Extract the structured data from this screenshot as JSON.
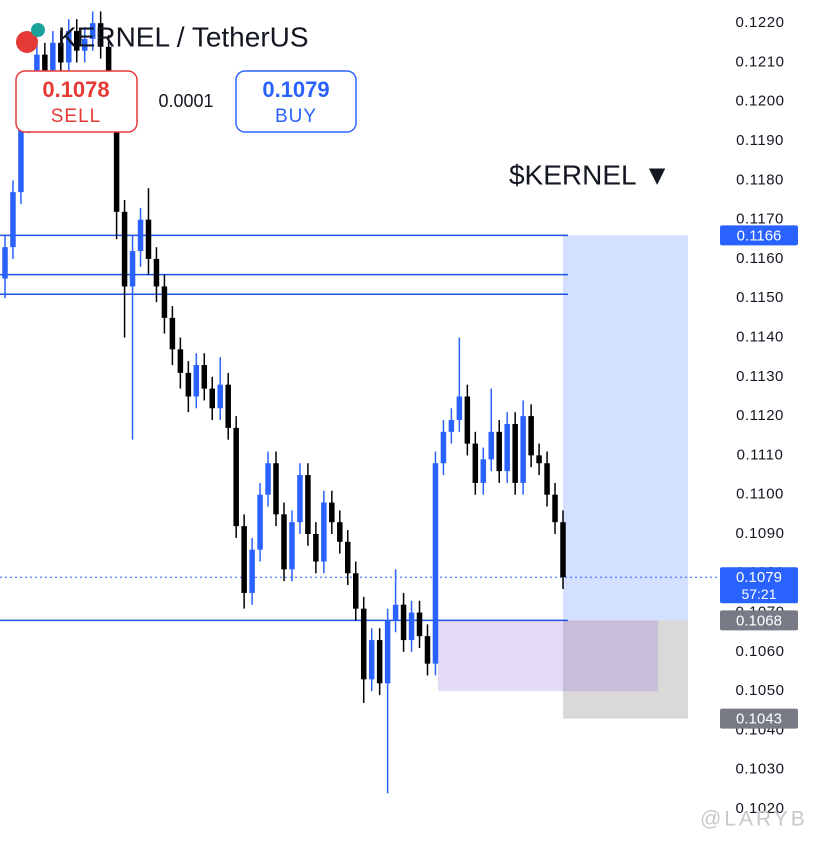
{
  "chart_data": {
    "type": "candlestick",
    "title": "KERNEL / TetherUS",
    "sell_price": 0.1078,
    "sell_label": "SELL",
    "spread": 0.0001,
    "buy_price": 0.1079,
    "buy_label": "BUY",
    "annotation": "$KERNEL ▼",
    "watermark": "@LARYB",
    "ylim": [
      0.10111,
      0.12259
    ],
    "yticks": [
      {
        "value": 0.102,
        "label": "0.1020"
      },
      {
        "value": 0.103,
        "label": "0.1030"
      },
      {
        "value": 0.104,
        "label": "0.1040"
      },
      {
        "value": 0.105,
        "label": "0.1050"
      },
      {
        "value": 0.106,
        "label": "0.1060"
      },
      {
        "value": 0.107,
        "label": "0.1070"
      },
      {
        "value": 0.108,
        "label": "0.1080"
      },
      {
        "value": 0.109,
        "label": "0.1090"
      },
      {
        "value": 0.11,
        "label": "0.1100"
      },
      {
        "value": 0.111,
        "label": "0.1110"
      },
      {
        "value": 0.112,
        "label": "0.1120"
      },
      {
        "value": 0.113,
        "label": "0.1130"
      },
      {
        "value": 0.114,
        "label": "0.1140"
      },
      {
        "value": 0.115,
        "label": "0.1150"
      },
      {
        "value": 0.116,
        "label": "0.1160"
      },
      {
        "value": 0.117,
        "label": "0.1170"
      },
      {
        "value": 0.118,
        "label": "0.1180"
      },
      {
        "value": 0.119,
        "label": "0.1190"
      },
      {
        "value": 0.12,
        "label": "0.1200"
      },
      {
        "value": 0.121,
        "label": "0.1210"
      },
      {
        "value": 0.122,
        "label": "0.1220"
      }
    ],
    "up_color": "#2962ff",
    "down_color": "#000000",
    "open": [
      0.1155,
      0.1163,
      0.1177,
      0.1195,
      0.1205,
      0.1212,
      0.1208,
      0.1215,
      0.121,
      0.1218,
      0.1213,
      0.1216,
      0.122,
      0.1214,
      0.1198,
      0.1172,
      0.1153,
      0.1162,
      0.117,
      0.116,
      0.1153,
      0.1145,
      0.1137,
      0.1131,
      0.1125,
      0.1133,
      0.1127,
      0.1122,
      0.1128,
      0.1117,
      0.1092,
      0.1075,
      0.1086,
      0.11,
      0.1108,
      0.1095,
      0.1081,
      0.1093,
      0.1105,
      0.109,
      0.1083,
      0.1098,
      0.1093,
      0.1088,
      0.108,
      0.1071,
      0.1053,
      0.1063,
      0.1052,
      0.1068,
      0.1072,
      0.1063,
      0.107,
      0.1064,
      0.1057,
      0.1108,
      0.1116,
      0.1119,
      0.1125,
      0.1113,
      0.1103,
      0.1109,
      0.1116,
      0.1106,
      0.1118,
      0.1103,
      0.112,
      0.111,
      0.1108,
      0.11,
      0.1093
    ],
    "high": [
      0.1166,
      0.118,
      0.1198,
      0.1208,
      0.1215,
      0.1215,
      0.1218,
      0.1218,
      0.1221,
      0.1221,
      0.1219,
      0.1223,
      0.1223,
      0.1217,
      0.12,
      0.1175,
      0.1166,
      0.1173,
      0.1178,
      0.1163,
      0.1156,
      0.1148,
      0.114,
      0.1134,
      0.1136,
      0.1136,
      0.113,
      0.1135,
      0.1131,
      0.112,
      0.1095,
      0.1089,
      0.1103,
      0.1111,
      0.1111,
      0.1098,
      0.1096,
      0.1108,
      0.1108,
      0.1093,
      0.1101,
      0.1101,
      0.1096,
      0.1091,
      0.1083,
      0.1074,
      0.1066,
      0.1066,
      0.1071,
      0.1081,
      0.1075,
      0.1073,
      0.1073,
      0.1067,
      0.1111,
      0.1119,
      0.1122,
      0.114,
      0.1128,
      0.1116,
      0.1112,
      0.1127,
      0.1119,
      0.1121,
      0.1121,
      0.1124,
      0.1123,
      0.1113,
      0.1111,
      0.1103,
      0.1096
    ],
    "low": [
      0.115,
      0.116,
      0.1174,
      0.1192,
      0.1202,
      0.1205,
      0.1205,
      0.1207,
      0.1207,
      0.121,
      0.121,
      0.1213,
      0.1211,
      0.1195,
      0.1165,
      0.114,
      0.1114,
      0.1158,
      0.1156,
      0.1149,
      0.1141,
      0.1133,
      0.1127,
      0.1121,
      0.1122,
      0.1124,
      0.1119,
      0.1119,
      0.1114,
      0.1089,
      0.1071,
      0.1072,
      0.1083,
      0.1097,
      0.1092,
      0.1078,
      0.1078,
      0.109,
      0.1087,
      0.108,
      0.108,
      0.109,
      0.1085,
      0.1077,
      0.1068,
      0.1047,
      0.105,
      0.1049,
      0.1024,
      0.1065,
      0.106,
      0.106,
      0.1061,
      0.1054,
      0.1054,
      0.1105,
      0.1113,
      0.1116,
      0.111,
      0.11,
      0.11,
      0.1106,
      0.1103,
      0.1103,
      0.11,
      0.11,
      0.1107,
      0.1105,
      0.1097,
      0.109,
      0.1076
    ],
    "close": [
      0.1163,
      0.1177,
      0.1195,
      0.1205,
      0.1212,
      0.1208,
      0.1215,
      0.121,
      0.1218,
      0.1213,
      0.1216,
      0.122,
      0.1214,
      0.1198,
      0.1172,
      0.1153,
      0.1162,
      0.117,
      0.116,
      0.1153,
      0.1145,
      0.1137,
      0.1131,
      0.1125,
      0.1133,
      0.1127,
      0.1122,
      0.1128,
      0.1117,
      0.1092,
      0.1075,
      0.1086,
      0.11,
      0.1108,
      0.1095,
      0.1081,
      0.1093,
      0.1105,
      0.109,
      0.1083,
      0.1098,
      0.1093,
      0.1088,
      0.108,
      0.1071,
      0.1053,
      0.1063,
      0.1052,
      0.1068,
      0.1072,
      0.1063,
      0.107,
      0.1064,
      0.1057,
      0.1108,
      0.1116,
      0.1119,
      0.1125,
      0.1113,
      0.1103,
      0.1109,
      0.1116,
      0.1106,
      0.1118,
      0.1103,
      0.112,
      0.111,
      0.1108,
      0.11,
      0.1093,
      0.1079
    ],
    "levels": [
      0.1166,
      0.1156,
      0.1151,
      0.1068
    ],
    "level_color": "#1e53e5",
    "zones": [
      {
        "top": 0.1166,
        "bottom": 0.1068,
        "color": "rgba(41,98,255,0.2)"
      },
      {
        "top": 0.1068,
        "bottom": 0.1043,
        "color": "rgba(120,120,120,0.28)"
      },
      {
        "top": 0.1068,
        "bottom": 0.105,
        "color": "rgba(150,110,220,0.25)"
      }
    ],
    "current_price": 0.1079,
    "countdown": "57:21",
    "price_tags": [
      {
        "value": 0.1166,
        "color": "#2962ff"
      },
      {
        "value": 0.1079,
        "color": "#2962ff"
      },
      {
        "value": 0.1068,
        "color": "#787b86"
      },
      {
        "value": 0.1043,
        "color": "#787b86"
      }
    ]
  }
}
